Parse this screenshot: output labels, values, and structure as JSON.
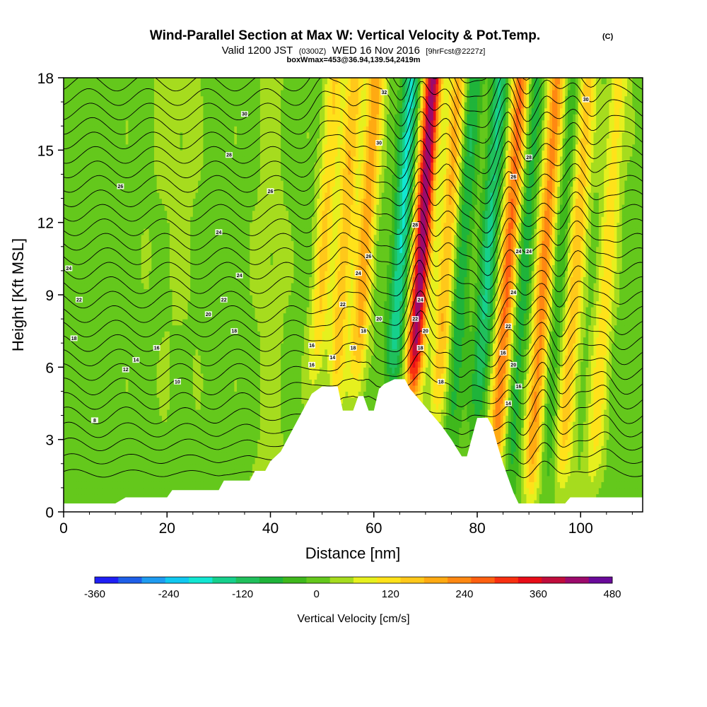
{
  "chart_data": {
    "type": "heatmap",
    "title": "Wind-Parallel Section at Max W: Vertical Velocity & Pot.Temp.",
    "title_mark": "(C)",
    "subtitle_parts": [
      "Valid 1200 JST",
      "(0300Z)",
      "WED 16 Nov 2016",
      "[9hrFcst@2227z]"
    ],
    "meta_line": "boxWmax=453@36.94,139.54,2419m",
    "xlabel": "Distance [nm]",
    "ylabel": "Height [Kft MSL]",
    "xlim": [
      0,
      112
    ],
    "ylim": [
      0,
      18
    ],
    "x_ticks": [
      "0",
      "20",
      "40",
      "60",
      "80",
      "100"
    ],
    "y_ticks": [
      "0",
      "3",
      "6",
      "9",
      "12",
      "15",
      "18"
    ],
    "grid": false,
    "colorbar": {
      "title": "Vertical Velocity [cm/s]",
      "labels": [
        "-360",
        "-240",
        "-120",
        "0",
        "120",
        "240",
        "360",
        "480"
      ],
      "min": -360,
      "max": 480,
      "step": 40,
      "colors": [
        "#1f1ff5",
        "#1e5fe8",
        "#1e9bf0",
        "#10c8f0",
        "#12e6d2",
        "#16d08c",
        "#20c05c",
        "#1fb43a",
        "#3fb81c",
        "#64c81c",
        "#a6dc1e",
        "#e6f01e",
        "#ffe21a",
        "#ffc81a",
        "#ffaa12",
        "#ff8812",
        "#ff6010",
        "#f83010",
        "#e80c18",
        "#c00c3c",
        "#9c0a6c",
        "#6a0a9a"
      ]
    },
    "updraft_bands": [
      {
        "x": 50,
        "peak": 140
      },
      {
        "x": 54,
        "peak": 170
      },
      {
        "x": 58,
        "peak": 200
      },
      {
        "x": 69,
        "peak": 453
      },
      {
        "x": 74,
        "peak": 180
      },
      {
        "x": 86,
        "peak": 260
      },
      {
        "x": 93,
        "peak": 230
      },
      {
        "x": 99,
        "peak": 160
      },
      {
        "x": 105,
        "peak": 120
      }
    ],
    "downdraft_bands": [
      {
        "x": 65,
        "peak": -200
      },
      {
        "x": 77,
        "peak": -100
      },
      {
        "x": 82,
        "peak": -150
      },
      {
        "x": 89,
        "peak": -90
      },
      {
        "x": 96,
        "peak": -60
      }
    ],
    "terrain_kft": [
      [
        0,
        0.35
      ],
      [
        10,
        0.35
      ],
      [
        12,
        0.6
      ],
      [
        20,
        0.6
      ],
      [
        21,
        0.9
      ],
      [
        30,
        0.9
      ],
      [
        31,
        1.3
      ],
      [
        36,
        1.3
      ],
      [
        37,
        1.7
      ],
      [
        39,
        1.7
      ],
      [
        40,
        2.1
      ],
      [
        42,
        2.5
      ],
      [
        43,
        2.9
      ],
      [
        44,
        3.3
      ],
      [
        45,
        3.7
      ],
      [
        46,
        4.1
      ],
      [
        47,
        4.5
      ],
      [
        48,
        4.9
      ],
      [
        50,
        5.2
      ],
      [
        53,
        5.2
      ],
      [
        54,
        4.2
      ],
      [
        56,
        4.2
      ],
      [
        57,
        4.8
      ],
      [
        58,
        4.8
      ],
      [
        59,
        4.2
      ],
      [
        60,
        4.2
      ],
      [
        61,
        5.1
      ],
      [
        62,
        5.3
      ],
      [
        64,
        5.5
      ],
      [
        66,
        5.5
      ],
      [
        67,
        5.1
      ],
      [
        69,
        4.6
      ],
      [
        71,
        4.1
      ],
      [
        73,
        3.6
      ],
      [
        75,
        3.0
      ],
      [
        77,
        2.3
      ],
      [
        78,
        2.3
      ],
      [
        79,
        3.1
      ],
      [
        80,
        3.9
      ],
      [
        82,
        3.9
      ],
      [
        83,
        3.5
      ],
      [
        84,
        2.7
      ],
      [
        85,
        2.0
      ],
      [
        86,
        1.4
      ],
      [
        87,
        0.8
      ],
      [
        88,
        0.35
      ],
      [
        97,
        0.35
      ],
      [
        98,
        0.6
      ],
      [
        112,
        0.6
      ]
    ],
    "isentrope_labels": [
      {
        "x": 6,
        "y": 3.8,
        "text": "8"
      },
      {
        "x": 22,
        "y": 5.4,
        "text": "10"
      },
      {
        "x": 12,
        "y": 5.9,
        "text": "12"
      },
      {
        "x": 14,
        "y": 6.3,
        "text": "14"
      },
      {
        "x": 18,
        "y": 6.8,
        "text": "16"
      },
      {
        "x": 2,
        "y": 7.2,
        "text": "18"
      },
      {
        "x": 33,
        "y": 7.5,
        "text": "18"
      },
      {
        "x": 28,
        "y": 8.2,
        "text": "20"
      },
      {
        "x": 3,
        "y": 8.8,
        "text": "22"
      },
      {
        "x": 31,
        "y": 8.8,
        "text": "22"
      },
      {
        "x": 1,
        "y": 10.1,
        "text": "24"
      },
      {
        "x": 34,
        "y": 9.8,
        "text": "24"
      },
      {
        "x": 30,
        "y": 11.6,
        "text": "24"
      },
      {
        "x": 40,
        "y": 13.3,
        "text": "26"
      },
      {
        "x": 11,
        "y": 13.5,
        "text": "26"
      },
      {
        "x": 32,
        "y": 14.8,
        "text": "28"
      },
      {
        "x": 35,
        "y": 16.5,
        "text": "30"
      },
      {
        "x": 62,
        "y": 17.4,
        "text": "32"
      },
      {
        "x": 61,
        "y": 15.3,
        "text": "30"
      },
      {
        "x": 57,
        "y": 9.9,
        "text": "24"
      },
      {
        "x": 59,
        "y": 10.6,
        "text": "26"
      },
      {
        "x": 54,
        "y": 8.6,
        "text": "22"
      },
      {
        "x": 48,
        "y": 6.9,
        "text": "16"
      },
      {
        "x": 48,
        "y": 6.1,
        "text": "16"
      },
      {
        "x": 52,
        "y": 6.4,
        "text": "14"
      },
      {
        "x": 58,
        "y": 7.5,
        "text": "18"
      },
      {
        "x": 56,
        "y": 6.8,
        "text": "18"
      },
      {
        "x": 61,
        "y": 8.0,
        "text": "20"
      },
      {
        "x": 68,
        "y": 11.9,
        "text": "28"
      },
      {
        "x": 69,
        "y": 8.8,
        "text": "24"
      },
      {
        "x": 68,
        "y": 8.0,
        "text": "22"
      },
      {
        "x": 70,
        "y": 7.5,
        "text": "20"
      },
      {
        "x": 69,
        "y": 6.8,
        "text": "18"
      },
      {
        "x": 73,
        "y": 5.4,
        "text": "18"
      },
      {
        "x": 85,
        "y": 6.6,
        "text": "16"
      },
      {
        "x": 86,
        "y": 4.5,
        "text": "14"
      },
      {
        "x": 88,
        "y": 5.2,
        "text": "16"
      },
      {
        "x": 87,
        "y": 6.1,
        "text": "20"
      },
      {
        "x": 86,
        "y": 7.7,
        "text": "22"
      },
      {
        "x": 87,
        "y": 9.1,
        "text": "24"
      },
      {
        "x": 87,
        "y": 13.9,
        "text": "26"
      },
      {
        "x": 88,
        "y": 10.8,
        "text": "24"
      },
      {
        "x": 90,
        "y": 10.8,
        "text": "24"
      },
      {
        "x": 90,
        "y": 14.7,
        "text": "28"
      },
      {
        "x": 101,
        "y": 17.1,
        "text": "30"
      }
    ]
  }
}
